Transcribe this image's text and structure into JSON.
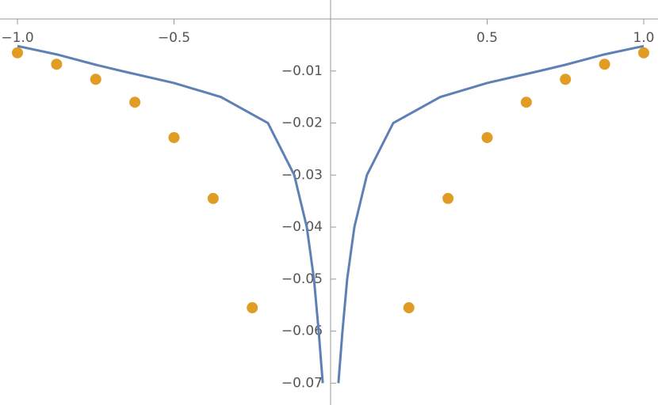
{
  "chart_data": {
    "type": "line",
    "xlim": [
      -1.0557,
      1.0456
    ],
    "ylim": [
      -0.0742,
      0.00365
    ],
    "xticks": [
      {
        "value": -1.0,
        "label": "−1.0"
      },
      {
        "value": -0.5,
        "label": "−0.5"
      },
      0.5,
      {
        "value": 1.0,
        "label": "1.0"
      }
    ],
    "yticks": [
      {
        "value": -0.01,
        "label": "−0.01"
      },
      {
        "value": -0.02,
        "label": "−0.02"
      },
      {
        "value": -0.03,
        "label": "−0.03"
      },
      {
        "value": -0.04,
        "label": "−0.04"
      },
      {
        "value": -0.05,
        "label": "−0.05"
      },
      {
        "value": -0.06,
        "label": "−0.06"
      },
      {
        "value": -0.07,
        "label": "−0.07"
      }
    ],
    "series": [
      {
        "type": "line",
        "color": "#5e81b5",
        "x": [
          -1.0,
          -0.875,
          -0.75,
          -0.667,
          -0.5,
          -0.35,
          -0.2,
          -0.116,
          -0.076,
          -0.053,
          -0.038,
          -0.025,
          null,
          0.025,
          0.038,
          0.053,
          0.076,
          0.116,
          0.2,
          0.35,
          0.5,
          0.667,
          0.75,
          0.875,
          1.0
        ],
        "values": [
          -0.0052,
          -0.0068,
          -0.0088,
          -0.01,
          -0.0123,
          -0.015,
          -0.02,
          -0.03,
          -0.04,
          -0.05,
          -0.06,
          -0.07,
          null,
          -0.07,
          -0.06,
          -0.05,
          -0.04,
          -0.03,
          -0.02,
          -0.015,
          -0.0123,
          -0.01,
          -0.0088,
          -0.0068,
          -0.0052
        ]
      },
      {
        "type": "scatter",
        "color": "#e19c24",
        "x": [
          -1.0,
          -0.875,
          -0.75,
          -0.625,
          -0.5,
          -0.375,
          -0.25,
          0.25,
          0.375,
          0.5,
          0.625,
          0.75,
          0.875,
          1.0
        ],
        "values": [
          -0.0065,
          -0.0087,
          -0.0116,
          -0.016,
          -0.0228,
          -0.0345,
          -0.0555,
          -0.0555,
          -0.0345,
          -0.0228,
          -0.016,
          -0.0116,
          -0.0087,
          -0.0065
        ]
      }
    ]
  }
}
